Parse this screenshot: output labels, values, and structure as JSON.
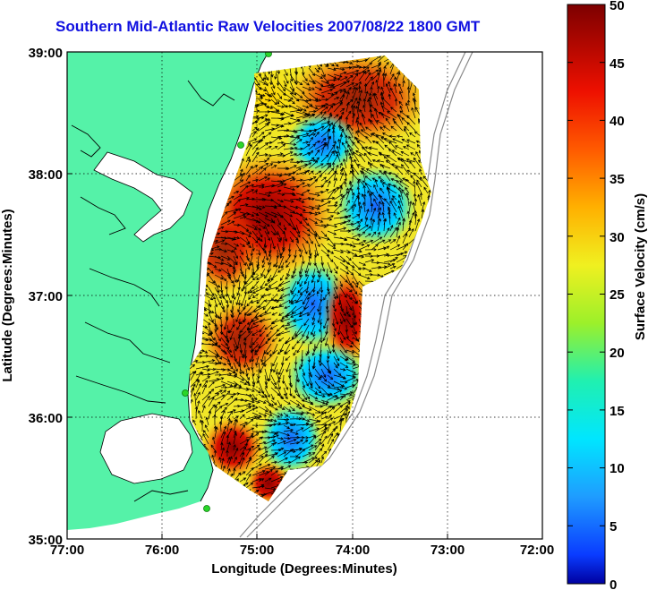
{
  "title": "Southern Mid-Atlantic Raw Velocities 2007/08/22 1800 GMT",
  "x_axis": {
    "label": "Longitude (Degrees:Minutes)",
    "ticks": [
      "77:00",
      "76:00",
      "75:00",
      "74:00",
      "73:00",
      "72:00"
    ]
  },
  "y_axis": {
    "label": "Latitude (Degrees:Minutes)",
    "ticks": [
      "39:00",
      "38:00",
      "37:00",
      "36:00",
      "35:00"
    ]
  },
  "colorbar": {
    "label": "Surface Velocity (cm/s)",
    "ticks": [
      "50",
      "45",
      "40",
      "35",
      "30",
      "25",
      "20",
      "15",
      "10",
      "5",
      "0"
    ],
    "min": 0,
    "max": 50
  },
  "colors": {
    "land": "#55f2a8",
    "title": "#1010e0",
    "station": "#2ad62a"
  }
}
